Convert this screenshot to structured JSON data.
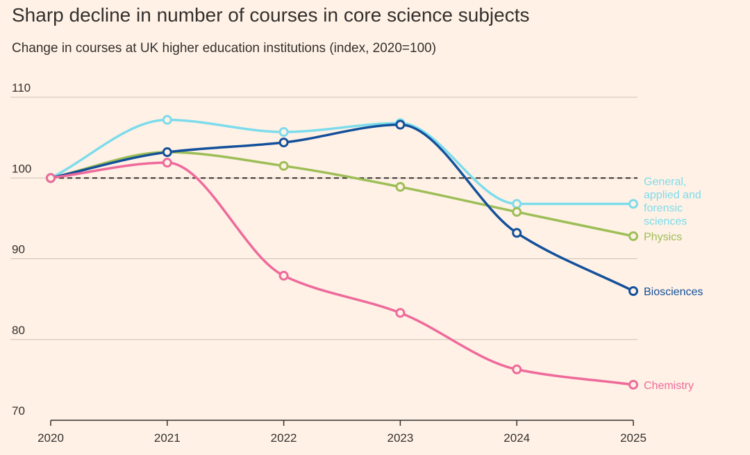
{
  "title": "Sharp decline in number of courses in core science subjects",
  "subtitle": "Change in courses at UK higher education institutions (index, 2020=100)",
  "chart_data": {
    "type": "line",
    "x": [
      "2020",
      "2021",
      "2022",
      "2023",
      "2024",
      "2025"
    ],
    "ylim": [
      70,
      110
    ],
    "yticks": [
      70,
      80,
      90,
      100,
      110
    ],
    "grid": true,
    "reference_line": {
      "y": 100,
      "style": "dashed"
    },
    "series": [
      {
        "name": "General, applied and forensic sciences",
        "label_lines": [
          "General,",
          "applied and",
          "forensic",
          "sciences"
        ],
        "color": "#7CDCEC",
        "values": [
          100,
          107.2,
          105.7,
          106.8,
          96.8,
          96.8
        ]
      },
      {
        "name": "Physics",
        "label_lines": [
          "Physics"
        ],
        "color": "#9DBE57",
        "values": [
          100,
          103.2,
          101.5,
          98.9,
          95.8,
          92.8
        ]
      },
      {
        "name": "Biosciences",
        "label_lines": [
          "Biosciences"
        ],
        "color": "#13509B",
        "values": [
          100,
          103.2,
          104.4,
          106.6,
          93.2,
          86.0
        ]
      },
      {
        "name": "Chemistry",
        "label_lines": [
          "Chemistry"
        ],
        "color": "#EE6A9B",
        "values": [
          100,
          101.9,
          87.9,
          83.3,
          76.3,
          74.4
        ]
      }
    ]
  }
}
